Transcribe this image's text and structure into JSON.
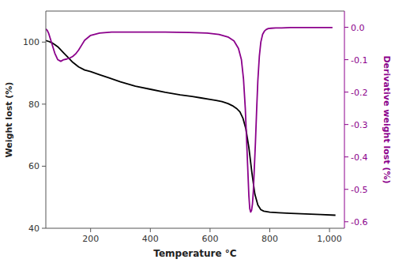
{
  "chart_data": {
    "type": "line",
    "xlabel": "Temperature °C",
    "ylabel": "Weight lost (%)",
    "y2label": "Derivative weight lost (%)",
    "xlim": [
      50,
      1050
    ],
    "xticks": [
      200,
      400,
      600,
      800,
      {
        "value": 1000,
        "label": "1,000"
      }
    ],
    "ylim": [
      40,
      110
    ],
    "yticks": [
      40,
      60,
      80,
      100
    ],
    "y2lim": [
      -0.62,
      0.05
    ],
    "y2ticks": [
      {
        "value": 0.0,
        "label": "0.0"
      },
      -0.1,
      -0.2,
      -0.3,
      -0.4,
      -0.5,
      -0.6
    ],
    "grid": false,
    "series": [
      {
        "color": "#000000",
        "x": [
          50,
          60,
          70,
          80,
          90,
          100,
          110,
          125,
          140,
          160,
          180,
          200,
          230,
          260,
          300,
          350,
          400,
          450,
          500,
          540,
          570,
          600,
          620,
          640,
          660,
          675,
          690,
          700,
          710,
          720,
          730,
          740,
          750,
          760,
          770,
          780,
          800,
          830,
          870,
          920,
          970,
          1020
        ],
        "values": [
          100.5,
          100.2,
          99.8,
          99.2,
          98.5,
          97.5,
          96.5,
          95.0,
          93.5,
          92.0,
          91.0,
          90.5,
          89.5,
          88.5,
          87.2,
          85.8,
          84.8,
          83.8,
          83.0,
          82.5,
          82.0,
          81.5,
          81.2,
          80.8,
          80.2,
          79.5,
          78.5,
          77.5,
          75.5,
          72.0,
          66.0,
          58.0,
          51.0,
          47.5,
          46.0,
          45.5,
          45.2,
          45.0,
          44.8,
          44.6,
          44.4,
          44.2
        ]
      },
      {
        "color": "#8B008B",
        "axis": "y2",
        "x": [
          50,
          55,
          60,
          70,
          80,
          90,
          100,
          110,
          120,
          130,
          140,
          150,
          160,
          170,
          180,
          200,
          230,
          270,
          320,
          380,
          450,
          530,
          590,
          630,
          660,
          680,
          695,
          705,
          712,
          718,
          722,
          726,
          730,
          733,
          736,
          739,
          742,
          745,
          748,
          752,
          756,
          760,
          765,
          770,
          776,
          782,
          788,
          795,
          805,
          820,
          840,
          870,
          910,
          960,
          1010
        ],
        "values": [
          -0.005,
          -0.01,
          -0.02,
          -0.05,
          -0.08,
          -0.1,
          -0.105,
          -0.1,
          -0.098,
          -0.095,
          -0.09,
          -0.082,
          -0.07,
          -0.055,
          -0.04,
          -0.025,
          -0.018,
          -0.015,
          -0.015,
          -0.015,
          -0.015,
          -0.016,
          -0.018,
          -0.022,
          -0.03,
          -0.042,
          -0.065,
          -0.1,
          -0.16,
          -0.25,
          -0.34,
          -0.43,
          -0.52,
          -0.56,
          -0.57,
          -0.565,
          -0.545,
          -0.505,
          -0.44,
          -0.355,
          -0.255,
          -0.165,
          -0.09,
          -0.046,
          -0.022,
          -0.012,
          -0.007,
          -0.004,
          -0.003,
          -0.002,
          -0.002,
          -0.001,
          -0.001,
          -0.001,
          -0.001
        ]
      }
    ]
  }
}
